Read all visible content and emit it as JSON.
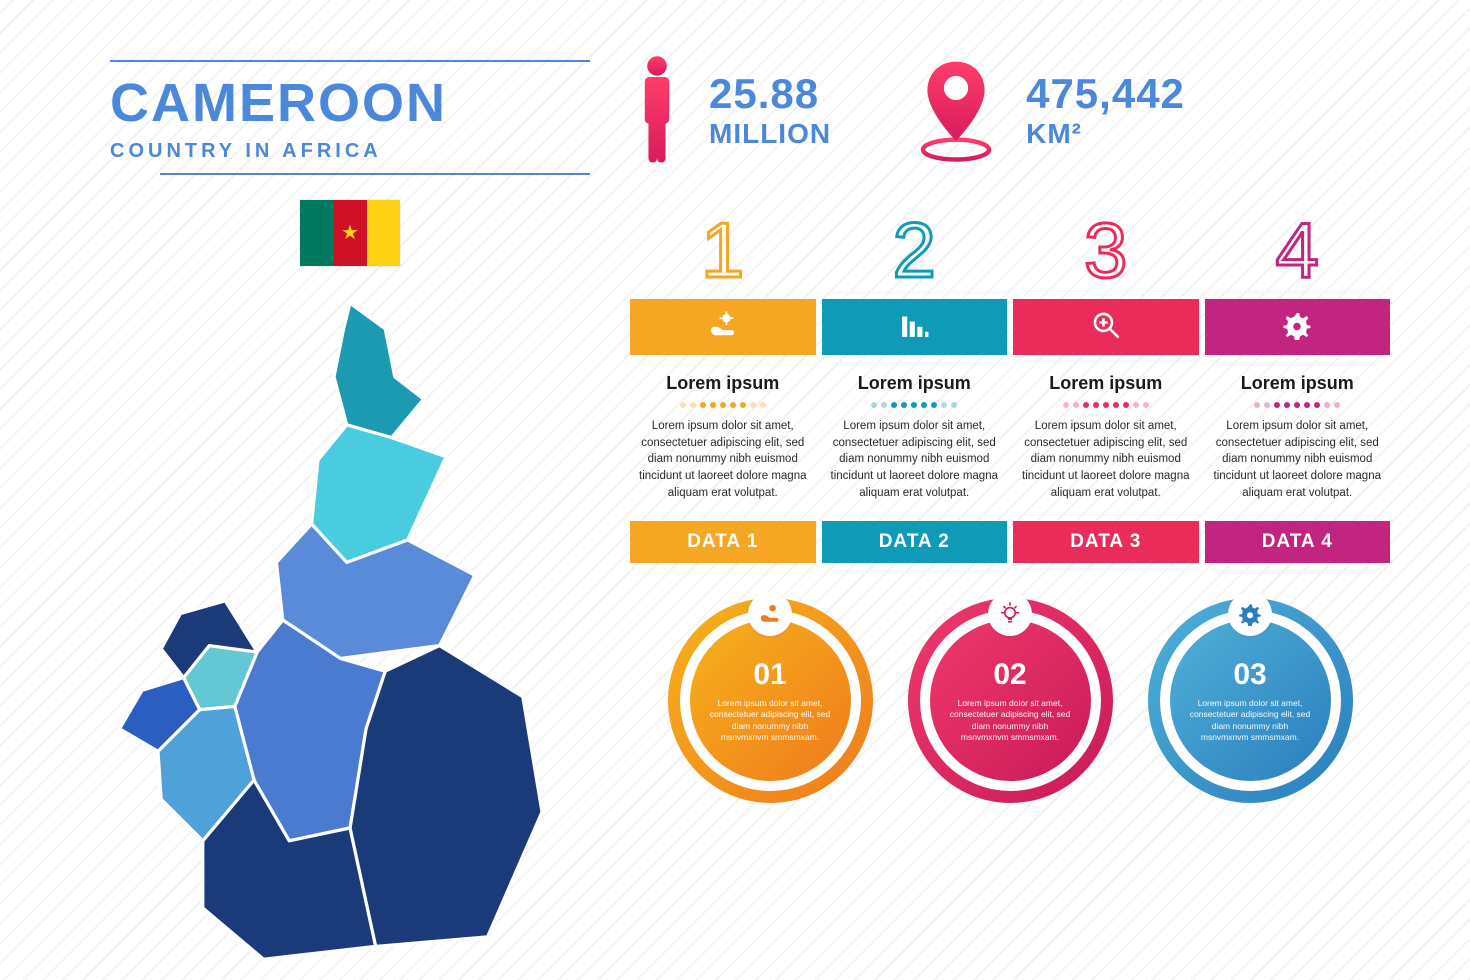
{
  "title": "CAMEROON",
  "subtitle": "COUNTRY IN AFRICA",
  "title_color": "#4b88d9",
  "flag": {
    "stripe1": "#007a5e",
    "stripe2": "#ce1126",
    "stripe3": "#fcd116",
    "star_color": "#fcd116"
  },
  "background": {
    "stripe_color": "#f3f3f3",
    "base_color": "#ffffff"
  },
  "map_region_colors": {
    "far_north": "#1b9ab2",
    "north": "#49ccdf",
    "adamawa": "#5a8bd8",
    "east": "#1b3a7a",
    "centre": "#4a7bd0",
    "south": "#1b3a7a",
    "littoral": "#4fa2d9",
    "southwest": "#2b5ec1",
    "northwest": "#1b3a7a",
    "west": "#63c8d3"
  },
  "stats": {
    "population": {
      "value": "25.88",
      "unit": "MILLION",
      "icon_color1": "#ff3d6a",
      "icon_color2": "#d61c5c"
    },
    "area": {
      "value": "475,442",
      "unit": "KM²",
      "icon_color1": "#ff3d6a",
      "icon_color2": "#d61c5c"
    }
  },
  "columns": [
    {
      "num": "1",
      "num_color": "#f5a623",
      "bar_color": "#f5a623",
      "title": "Lorem ipsum",
      "body": "Lorem ipsum dolor sit amet, consectetuer adipiscing elit, sed diam nonummy nibh euismod tincidunt ut laoreet dolore magna aliquam erat volutpat.",
      "data_label": "DATA 1",
      "icon": "hand-gear"
    },
    {
      "num": "2",
      "num_color": "#0f9bb8",
      "bar_color": "#0f9bb8",
      "title": "Lorem ipsum",
      "body": "Lorem ipsum dolor sit amet, consectetuer adipiscing elit, sed diam nonummy nibh euismod tincidunt ut laoreet dolore magna aliquam erat volutpat.",
      "data_label": "DATA 2",
      "icon": "bars"
    },
    {
      "num": "3",
      "num_color": "#ea2c5a",
      "bar_color": "#ea2c5a",
      "title": "Lorem ipsum",
      "body": "Lorem ipsum dolor sit amet, consectetuer adipiscing elit, sed diam nonummy nibh euismod tincidunt ut laoreet dolore magna aliquam erat volutpat.",
      "data_label": "DATA 3",
      "icon": "zoom"
    },
    {
      "num": "4",
      "num_color": "#c1257f",
      "bar_color": "#c1257f",
      "title": "Lorem ipsum",
      "body": "Lorem ipsum dolor sit amet, consectetuer adipiscing elit, sed diam nonummy nibh euismod tincidunt ut laoreet dolore magna aliquam erat volutpat.",
      "data_label": "DATA 4",
      "icon": "gear"
    }
  ],
  "col_body_fontsize": 11.5,
  "circles": [
    {
      "num": "01",
      "text": "Lorem ipsum dolor sit amet, consectetuer adipiscing elit, sed diam nonummy nibh msnvmxnvm  smmsmxam.",
      "grad1": "#f6b21b",
      "grad2": "#f07a1e",
      "icon": "hand-gear"
    },
    {
      "num": "02",
      "text": "Lorem ipsum dolor sit amet, consectetuer adipiscing elit, sed diam nonummy nibh msnvmxnvm  smmsmxam.",
      "grad1": "#f0396c",
      "grad2": "#c91a58",
      "icon": "bulb"
    },
    {
      "num": "03",
      "text": "Lorem ipsum dolor sit amet, consectetuer adipiscing elit, sed diam nonummy nibh msnvmxnvm  smmsmxam.",
      "grad1": "#4fb0d9",
      "grad2": "#2b7ebc",
      "icon": "gear"
    }
  ]
}
